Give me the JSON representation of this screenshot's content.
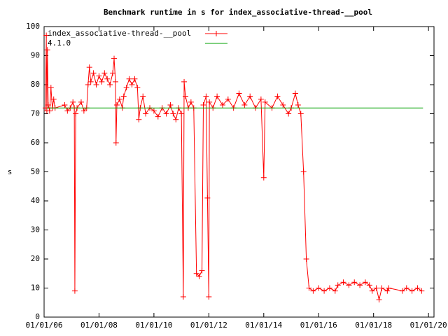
{
  "chart_data": {
    "type": "line",
    "title": "Benchmark runtime in s for index_associative-thread-__pool",
    "y_label": "s",
    "xlim": [
      2006,
      2020.2
    ],
    "xticks": [
      {
        "value": 2006,
        "label": "01/01/06"
      },
      {
        "value": 2008,
        "label": "01/01/08"
      },
      {
        "value": 2010,
        "label": "01/01/10"
      },
      {
        "value": 2012,
        "label": "01/01/12"
      },
      {
        "value": 2014,
        "label": "01/01/14"
      },
      {
        "value": 2016,
        "label": "01/01/16"
      },
      {
        "value": 2018,
        "label": "01/01/18"
      },
      {
        "value": 2020,
        "label": "01/01/20"
      }
    ],
    "ylim": [
      0,
      100
    ],
    "yticks": [
      0,
      10,
      20,
      30,
      40,
      50,
      60,
      70,
      80,
      90,
      100
    ],
    "grid": false,
    "legend": "top-left",
    "series": [
      {
        "name": "index_associative-thread-__pool",
        "color": "#ff0000",
        "markers": true,
        "x": [
          2006.05,
          2006.08,
          2006.1,
          2006.12,
          2006.15,
          2006.2,
          2006.25,
          2006.3,
          2006.35,
          2006.4,
          2006.75,
          2006.85,
          2006.95,
          2007.05,
          2007.1,
          2007.12,
          2007.15,
          2007.2,
          2007.35,
          2007.45,
          2007.55,
          2007.6,
          2007.65,
          2007.7,
          2007.8,
          2007.9,
          2008.0,
          2008.1,
          2008.2,
          2008.3,
          2008.4,
          2008.5,
          2008.55,
          2008.6,
          2008.62,
          2008.65,
          2008.75,
          2008.85,
          2008.9,
          2009.0,
          2009.1,
          2009.2,
          2009.3,
          2009.4,
          2009.45,
          2009.5,
          2009.6,
          2009.7,
          2009.85,
          2010.0,
          2010.15,
          2010.3,
          2010.45,
          2010.6,
          2010.7,
          2010.8,
          2010.9,
          2011.0,
          2011.07,
          2011.1,
          2011.15,
          2011.25,
          2011.35,
          2011.45,
          2011.55,
          2011.65,
          2011.75,
          2011.8,
          2011.9,
          2011.95,
          2012.0,
          2012.02,
          2012.15,
          2012.3,
          2012.5,
          2012.7,
          2012.9,
          2013.1,
          2013.3,
          2013.5,
          2013.7,
          2013.9,
          2014.0,
          2014.05,
          2014.3,
          2014.5,
          2014.7,
          2014.9,
          2015.0,
          2015.15,
          2015.25,
          2015.35,
          2015.45,
          2015.55,
          2015.65,
          2015.8,
          2016.0,
          2016.2,
          2016.4,
          2016.6,
          2016.7,
          2016.9,
          2017.1,
          2017.3,
          2017.5,
          2017.7,
          2017.85,
          2017.95,
          2018.1,
          2018.2,
          2018.3,
          2018.5,
          2018.55,
          2019.05,
          2019.2,
          2019.4,
          2019.6,
          2019.75
        ],
        "values": [
          72,
          97,
          71,
          92,
          73,
          71,
          79,
          72,
          75,
          72,
          73,
          71,
          72,
          74,
          72,
          9,
          70,
          72,
          74,
          71,
          72,
          80,
          86,
          81,
          84,
          80,
          83,
          81,
          84,
          82,
          80,
          84,
          89,
          81,
          60,
          73,
          75,
          72,
          76,
          79,
          82,
          80,
          82,
          79,
          68,
          72,
          76,
          70,
          72,
          71,
          69,
          72,
          70,
          73,
          70,
          68,
          72,
          70,
          7,
          81,
          76,
          72,
          74,
          72,
          15,
          14,
          16,
          73,
          76,
          41,
          7,
          74,
          72,
          76,
          73,
          75,
          72,
          77,
          73,
          76,
          72,
          75,
          48,
          74,
          72,
          76,
          73,
          70,
          72,
          77,
          73,
          70,
          50,
          20,
          10,
          9,
          10,
          9,
          10,
          9,
          11,
          12,
          11,
          12,
          11,
          12,
          11,
          9,
          10,
          6,
          10,
          9,
          10,
          9,
          10,
          9,
          10,
          9
        ]
      },
      {
        "name": "4.1.0",
        "color": "#00a000",
        "markers": false,
        "x": [
          2006.1,
          2019.8
        ],
        "values": [
          72,
          72
        ]
      }
    ]
  }
}
